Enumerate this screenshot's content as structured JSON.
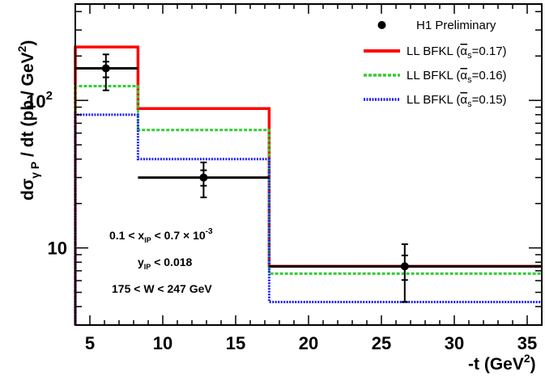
{
  "chart_data": {
    "type": "line",
    "xlabel": "-t (GeV",
    "xlabel_sup": "2",
    "xlabel_close": ")",
    "ylabel": "dσ",
    "ylabel_sub": "γ P",
    "ylabel_rest": " / dt (pb / GeV",
    "ylabel_sup": "2",
    "ylabel_close": ")",
    "xlim": [
      4,
      36
    ],
    "ylim": [
      3,
      450
    ],
    "yscale": "log",
    "x_ticks": [
      5,
      10,
      15,
      20,
      25,
      30,
      35
    ],
    "y_tick_labels": [
      {
        "value": 10,
        "text": "10"
      },
      {
        "value": 100,
        "base": "10",
        "exp": "2"
      }
    ],
    "bin_edges": [
      4,
      8.3,
      17.3,
      36
    ],
    "series": [
      {
        "name": "H1 Preliminary",
        "kind": "points",
        "color": "#000000",
        "points": [
          {
            "x": 6.1,
            "y": 165,
            "xerr_lo": 2.1,
            "xerr_hi": 2.2,
            "yerr_lo": 48,
            "yerr_hi": 40
          },
          {
            "x": 12.8,
            "y": 30,
            "xerr_lo": 4.5,
            "xerr_hi": 4.5,
            "yerr_lo": 8,
            "yerr_hi": 8
          },
          {
            "x": 26.6,
            "y": 7.5,
            "xerr_lo": 9.3,
            "xerr_hi": 9.4,
            "yerr_lo": 3.2,
            "yerr_hi": 3.1
          }
        ]
      },
      {
        "name": "LL BFKL",
        "alpha": "α",
        "alpha_sub": "s",
        "value": "=0.17",
        "kind": "step",
        "color": "#ff0000",
        "dash": "solid",
        "values": [
          230,
          88,
          7.5
        ]
      },
      {
        "name": "LL BFKL",
        "alpha": "α",
        "alpha_sub": "s",
        "value": "=0.16",
        "kind": "step",
        "color": "#33cc33",
        "dash": "dense",
        "values": [
          125,
          63,
          6.7
        ]
      },
      {
        "name": "LL BFKL",
        "alpha": "α",
        "alpha_sub": "s",
        "value": "=0.15",
        "kind": "step",
        "color": "#1a1aff",
        "dash": "dotted",
        "values": [
          80,
          40,
          4.3
        ]
      }
    ],
    "legend_position": "top-right",
    "annotations": [
      {
        "a": "0.1 < x",
        "sub": "IP",
        "b": " < 0.7 × 10",
        "sup": "-3"
      },
      {
        "a": "y",
        "sub": "IP",
        "b": " < 0.018"
      },
      {
        "a": "175 < W < 247 GeV"
      }
    ]
  }
}
